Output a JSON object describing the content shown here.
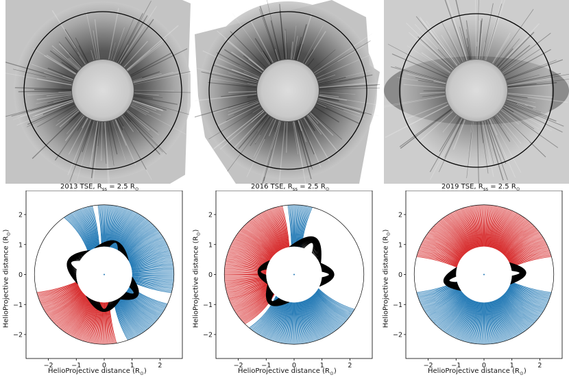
{
  "panels": [
    {
      "photo": "2013 total solar eclipse corona image",
      "title_prefix": "2013 TSE, R",
      "title_sub": "ss",
      "title_suffix": " = 2.5 R",
      "title_sun": "⊙",
      "xlabel": "HelioProjective distance (R",
      "ylabel": "HelioProjective distance (R",
      "label_close": ")",
      "field_pattern": "2013"
    },
    {
      "photo": "2016 total solar eclipse corona image",
      "title_prefix": "2016 TSE, R",
      "title_sub": "ss",
      "title_suffix": " = 2.5 R",
      "title_sun": "⊙",
      "xlabel": "HelioProjective distance (R",
      "ylabel": "HelioProjective distance (R",
      "label_close": ")",
      "field_pattern": "2016"
    },
    {
      "photo": "2019 total solar eclipse corona image",
      "title_prefix": "2019 TSE, R",
      "title_sub": "ss",
      "title_suffix": " = 2.5 R",
      "title_sun": "⊙",
      "xlabel": "HelioProjective distance (R",
      "ylabel": "HelioProjective distance (R",
      "label_close": ")",
      "field_pattern": "2019"
    }
  ],
  "chart_data": [
    {
      "type": "scatter",
      "title": "2013 TSE, Rss = 2.5 R⊙",
      "xlabel": "HelioProjective distance (R⊙)",
      "ylabel": "HelioProjective distance (R⊙)",
      "xlim": [
        -2.8,
        2.8
      ],
      "ylim": [
        -2.8,
        2.8
      ],
      "xticks": [
        -2,
        -1,
        0,
        1,
        2
      ],
      "yticks": [
        -2,
        -1,
        0,
        1,
        2
      ],
      "source_surface_radius": 2.5,
      "sun_radius": 1.0
    },
    {
      "type": "scatter",
      "title": "2016 TSE, Rss = 2.5 R⊙",
      "xlabel": "HelioProjective distance (R⊙)",
      "ylabel": "HelioProjective distance (R⊙)",
      "xlim": [
        -2.8,
        2.8
      ],
      "ylim": [
        -2.8,
        2.8
      ],
      "xticks": [
        -2,
        -1,
        0,
        1,
        2
      ],
      "yticks": [
        -2,
        -1,
        0,
        1,
        2
      ],
      "source_surface_radius": 2.5,
      "sun_radius": 1.0
    },
    {
      "type": "scatter",
      "title": "2019 TSE, Rss = 2.5 R⊙",
      "xlabel": "HelioProjective distance (R⊙)",
      "ylabel": "HelioProjective distance (R⊙)",
      "xlim": [
        -2.8,
        2.8
      ],
      "ylim": [
        -2.8,
        2.8
      ],
      "xticks": [
        -2,
        -1,
        0,
        1,
        2
      ],
      "yticks": [
        -2,
        -1,
        0,
        1,
        2
      ],
      "source_surface_radius": 2.5,
      "sun_radius": 1.0
    }
  ],
  "colors": {
    "positive_open": "#d62728",
    "negative_open": "#1f77b4",
    "closed": "#000000"
  }
}
